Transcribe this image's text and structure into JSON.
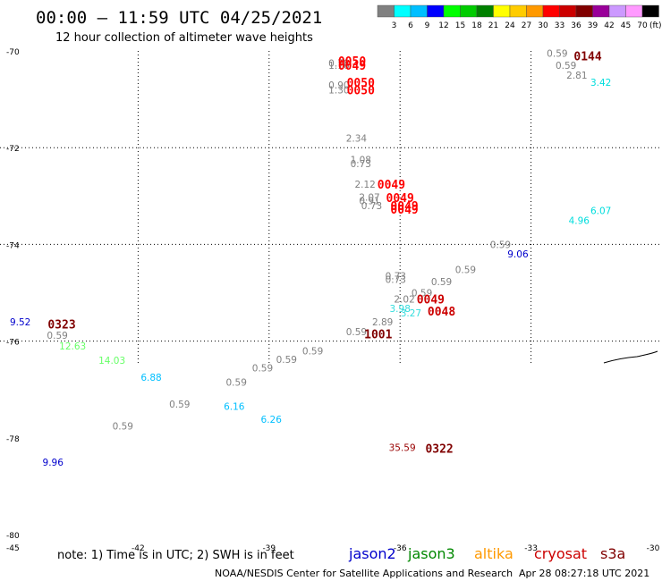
{
  "title": "00:00 – 11:59 UTC 04/25/2021",
  "subtitle": "12 hour collection of altimeter wave heights",
  "colorbar": {
    "colors": [
      "#808080",
      "#00ffff",
      "#00bfff",
      "#0000ff",
      "#00ff00",
      "#00cc00",
      "#008000",
      "#ffff00",
      "#ffcc00",
      "#ff9900",
      "#ff0000",
      "#cc0000",
      "#800000",
      "#990099",
      "#cc99ff",
      "#ff99ff",
      "#000000"
    ],
    "labels": [
      "3",
      "6",
      "9",
      "12",
      "15",
      "18",
      "21",
      "24",
      "27",
      "30",
      "33",
      "36",
      "39",
      "42",
      "45",
      "70"
    ],
    "unit": "(ft)"
  },
  "lat_labels": [
    "-70",
    "-72",
    "-74",
    "-76",
    "-78",
    "-80"
  ],
  "lon_labels": [
    "-45",
    "-42",
    "-39",
    "-36",
    "-33",
    "-30"
  ],
  "note": "note:  1) Time is in UTC;  2) SWH is in feet",
  "legend": [
    {
      "name": "jason2",
      "color": "#0000cc"
    },
    {
      "name": "jason3",
      "color": "#008800"
    },
    {
      "name": "altika",
      "color": "#ff9900"
    },
    {
      "name": "cryosat",
      "color": "#cc0000"
    },
    {
      "name": "s3a",
      "color": "#800000"
    }
  ],
  "credit": "NOAA/NESDIS Center for Satellite Applications and Research",
  "timestamp": "Apr 28 08:27:18 UTC 2021",
  "wave_labels": [
    {
      "t": "0.78",
      "lat": -70.25,
      "lon": -37.4,
      "c": "#808080"
    },
    {
      "t": "1.16",
      "lat": -70.3,
      "lon": -37.4,
      "c": "#808080"
    },
    {
      "t": "0.90",
      "lat": -70.7,
      "lon": -37.4,
      "c": "#808080"
    },
    {
      "t": "1.30",
      "lat": -70.8,
      "lon": -37.4,
      "c": "#808080"
    },
    {
      "t": "2.34",
      "lat": -71.8,
      "lon": -37.0,
      "c": "#808080"
    },
    {
      "t": "1.08",
      "lat": -72.25,
      "lon": -36.9,
      "c": "#808080"
    },
    {
      "t": "0.73",
      "lat": -72.33,
      "lon": -36.9,
      "c": "#808080"
    },
    {
      "t": "2.12",
      "lat": -72.75,
      "lon": -36.8,
      "c": "#808080"
    },
    {
      "t": "2.07",
      "lat": -73.02,
      "lon": -36.7,
      "c": "#808080"
    },
    {
      "t": "0.91",
      "lat": -73.1,
      "lon": -36.7,
      "c": "#808080"
    },
    {
      "t": "0.73",
      "lat": -73.2,
      "lon": -36.65,
      "c": "#808080"
    },
    {
      "t": "0.73",
      "lat": -74.65,
      "lon": -36.1,
      "c": "#808080"
    },
    {
      "t": "0.73",
      "lat": -74.72,
      "lon": -36.1,
      "c": "#808080"
    },
    {
      "t": "2.02",
      "lat": -75.13,
      "lon": -35.9,
      "c": "#808080"
    },
    {
      "t": "0.59",
      "lat": -75.0,
      "lon": -35.5,
      "c": "#808080"
    },
    {
      "t": "0.59",
      "lat": -74.77,
      "lon": -35.05,
      "c": "#808080"
    },
    {
      "t": "0.59",
      "lat": -74.52,
      "lon": -34.5,
      "c": "#808080"
    },
    {
      "t": "0.59",
      "lat": -74.0,
      "lon": -33.7,
      "c": "#808080"
    },
    {
      "t": "0.59",
      "lat": -70.05,
      "lon": -32.4,
      "c": "#808080"
    },
    {
      "t": "0.59",
      "lat": -70.3,
      "lon": -32.2,
      "c": "#808080"
    },
    {
      "t": "2.81",
      "lat": -70.5,
      "lon": -31.95,
      "c": "#808080"
    },
    {
      "t": "2.89",
      "lat": -75.6,
      "lon": -36.4,
      "c": "#808080"
    },
    {
      "t": "0.59",
      "lat": -75.8,
      "lon": -37.0,
      "c": "#808080"
    },
    {
      "t": "0.59",
      "lat": -76.2,
      "lon": -38.0,
      "c": "#808080"
    },
    {
      "t": "0.59",
      "lat": -76.38,
      "lon": -38.6,
      "c": "#808080"
    },
    {
      "t": "0.59",
      "lat": -76.55,
      "lon": -39.15,
      "c": "#808080"
    },
    {
      "t": "0.59",
      "lat": -76.85,
      "lon": -39.75,
      "c": "#808080"
    },
    {
      "t": "0.59",
      "lat": -77.3,
      "lon": -41.05,
      "c": "#808080"
    },
    {
      "t": "0.59",
      "lat": -77.75,
      "lon": -42.35,
      "c": "#808080"
    },
    {
      "t": "0.59",
      "lat": -75.88,
      "lon": -43.85,
      "c": "#808080"
    },
    {
      "t": "9.52",
      "lat": -75.6,
      "lon": -44.7,
      "c": "#0000cc"
    },
    {
      "t": "9.96",
      "lat": -78.5,
      "lon": -43.95,
      "c": "#0000cc"
    },
    {
      "t": "9.06",
      "lat": -74.2,
      "lon": -33.3,
      "c": "#0000cc"
    },
    {
      "t": "12.63",
      "lat": -76.1,
      "lon": -43.5,
      "c": "#66ff66"
    },
    {
      "t": "14.03",
      "lat": -76.4,
      "lon": -42.6,
      "c": "#66ff66"
    },
    {
      "t": "6.88",
      "lat": -76.75,
      "lon": -41.7,
      "c": "#00bfff"
    },
    {
      "t": "6.16",
      "lat": -77.35,
      "lon": -39.8,
      "c": "#00bfff"
    },
    {
      "t": "6.26",
      "lat": -77.62,
      "lon": -38.95,
      "c": "#00bfff"
    },
    {
      "t": "3.98",
      "lat": -75.32,
      "lon": -36.0,
      "c": "#33dddd"
    },
    {
      "t": "3.27",
      "lat": -75.42,
      "lon": -35.75,
      "c": "#33dddd"
    },
    {
      "t": "3.42",
      "lat": -70.65,
      "lon": -31.4,
      "c": "#00dddd"
    },
    {
      "t": "4.96",
      "lat": -73.5,
      "lon": -31.9,
      "c": "#00dddd"
    },
    {
      "t": "6.07",
      "lat": -73.3,
      "lon": -31.4,
      "c": "#00dddd"
    },
    {
      "t": "35.59",
      "lat": -78.2,
      "lon": -35.95,
      "c": "#990000"
    }
  ],
  "time_labels": [
    {
      "t": "0050",
      "lat": -70.2,
      "lon": -37.1,
      "c": "#ff0000"
    },
    {
      "t": "0049",
      "lat": -70.3,
      "lon": -37.1,
      "c": "#ff0000"
    },
    {
      "t": "0050",
      "lat": -70.65,
      "lon": -36.9,
      "c": "#ff0000"
    },
    {
      "t": "0050",
      "lat": -70.8,
      "lon": -36.9,
      "c": "#ff0000"
    },
    {
      "t": "0049",
      "lat": -72.75,
      "lon": -36.2,
      "c": "#ff0000"
    },
    {
      "t": "0049",
      "lat": -73.03,
      "lon": -36.0,
      "c": "#ff0000"
    },
    {
      "t": "0049",
      "lat": -73.2,
      "lon": -35.9,
      "c": "#ff0000"
    },
    {
      "t": "0049",
      "lat": -73.27,
      "lon": -35.9,
      "c": "#ff0000"
    },
    {
      "t": "0049",
      "lat": -75.13,
      "lon": -35.3,
      "c": "#cc0000"
    },
    {
      "t": "0048",
      "lat": -75.38,
      "lon": -35.05,
      "c": "#cc0000"
    },
    {
      "t": "1001",
      "lat": -75.85,
      "lon": -36.5,
      "c": "#800000"
    },
    {
      "t": "0323",
      "lat": -75.65,
      "lon": -43.75,
      "c": "#800000"
    },
    {
      "t": "0322",
      "lat": -78.22,
      "lon": -35.1,
      "c": "#800000"
    },
    {
      "t": "0144",
      "lat": -70.1,
      "lon": -31.7,
      "c": "#800000"
    }
  ]
}
